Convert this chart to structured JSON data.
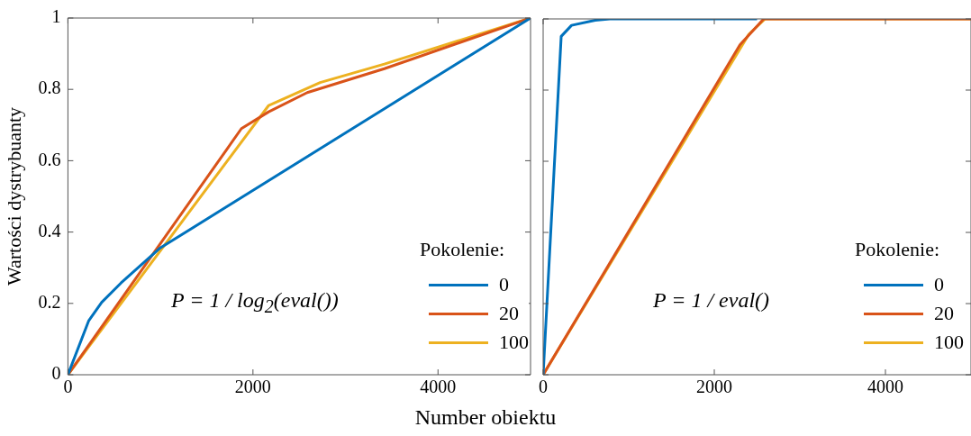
{
  "chart_data": [
    {
      "type": "line",
      "ylabel": "Wartości dystrybuanty",
      "xlabel": "Number obiektu",
      "xlim": [
        0,
        5000
      ],
      "xticks": [
        0,
        2000,
        4000
      ],
      "ylim": [
        0,
        1
      ],
      "yticks": [
        0,
        0.2,
        0.4,
        0.6,
        0.8,
        1
      ],
      "grid": false,
      "legend": "bottom right",
      "legend_title": "Pokolenie:",
      "marker": "none",
      "line_style": "solid",
      "annotations": [
        "P = 1 / log$_{2}$(eval())"
      ],
      "series": [
        {
          "name": "0",
          "color": "#0072bd",
          "x": [
            0,
            226,
            365,
            573,
            990,
            5000
          ],
          "values": [
            0,
            0.152,
            0.203,
            0.257,
            0.354,
            1
          ]
        },
        {
          "name": "20",
          "color": "#d95319",
          "x": [
            0,
            1875,
            2170,
            2587,
            3420,
            5000
          ],
          "values": [
            0,
            0.69,
            0.737,
            0.791,
            0.858,
            1
          ]
        },
        {
          "name": "100",
          "color": "#edb120",
          "x": [
            0,
            2170,
            2448,
            2726,
            3420,
            5000
          ],
          "values": [
            0,
            0.755,
            0.787,
            0.819,
            0.871,
            1
          ]
        }
      ]
    },
    {
      "type": "line",
      "xlim": [
        0,
        5000
      ],
      "xticks": [
        0,
        2000,
        4000
      ],
      "ylim": [
        0,
        1
      ],
      "yticks": [
        0,
        0.2,
        0.4,
        0.6,
        0.8,
        1
      ],
      "tick_labels": "x",
      "grid": false,
      "legend": "bottom right",
      "legend_title": "Pokolenie:",
      "marker": "none",
      "line_style": "solid",
      "annotations": [
        "P = 1 / eval()"
      ],
      "series": [
        {
          "name": "0",
          "color": "#0072bd",
          "x": [
            0,
            211,
            332,
            608,
            780,
            2500
          ],
          "values": [
            0,
            0.951,
            0.982,
            0.996,
            1,
            1
          ]
        },
        {
          "name": "20",
          "color": "#d95319",
          "x": [
            0,
            2300,
            2577,
            5000
          ],
          "values": [
            0,
            0.927,
            1,
            1
          ]
        },
        {
          "name": "100",
          "color": "#edb120",
          "x": [
            0,
            2404,
            2594,
            5000
          ],
          "values": [
            0,
            0.957,
            1,
            1
          ]
        }
      ]
    }
  ]
}
